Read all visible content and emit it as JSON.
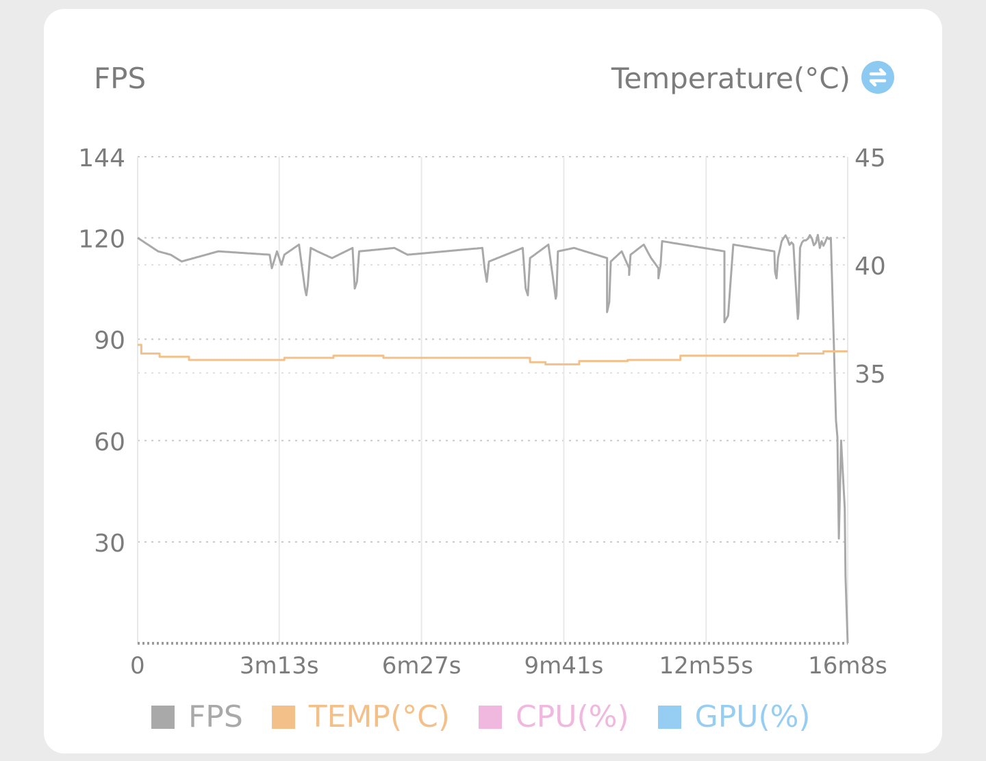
{
  "header": {
    "left_axis_title": "FPS",
    "right_axis_title": "Temperature(°C)",
    "swap_icon": "swap-arrows-icon"
  },
  "colors": {
    "fps": "#a9a9a9",
    "temp": "#f4c08a",
    "cpu": "#f0b8df",
    "gpu": "#96cdf3",
    "grid": "#c8c8c8",
    "tick_text": "#7c7c7c",
    "button": "#8ccaf2"
  },
  "chart_data": {
    "type": "line",
    "x_unit": "seconds",
    "x_ticks": [
      {
        "value": 0,
        "label": "0"
      },
      {
        "value": 193,
        "label": "3m13s"
      },
      {
        "value": 387,
        "label": "6m27s"
      },
      {
        "value": 581,
        "label": "9m41s"
      },
      {
        "value": 775,
        "label": "12m55s"
      },
      {
        "value": 968,
        "label": "16m8s"
      }
    ],
    "xlim": [
      0,
      968
    ],
    "y_left": {
      "title": "FPS",
      "ticks": [
        30,
        60,
        90,
        120,
        144
      ],
      "ylim": [
        0,
        144
      ]
    },
    "y_right": {
      "title": "Temperature(°C)",
      "ticks": [
        35,
        40,
        45
      ],
      "ylim": [
        22.5,
        45
      ]
    },
    "grid": true,
    "legend_position": "bottom",
    "legend": [
      {
        "key": "fps",
        "label": "FPS"
      },
      {
        "key": "temp",
        "label": "TEMP(°C)"
      },
      {
        "key": "cpu",
        "label": "CPU(%)"
      },
      {
        "key": "gpu",
        "label": "GPU(%)"
      }
    ],
    "series": [
      {
        "name": "FPS",
        "axis": "left",
        "color_key": "fps",
        "baseline": 119.5,
        "x": [
          0,
          28,
          45,
          60,
          110,
          180,
          183,
          190,
          196,
          200,
          220,
          228,
          230,
          232,
          234,
          236,
          245,
          265,
          293,
          296,
          299,
          302,
          350,
          368,
          470,
          473,
          476,
          479,
          525,
          529,
          532,
          535,
          560,
          570,
          571,
          573,
          595,
          640,
          640,
          643,
          645,
          660,
          670,
          670,
          672,
          690,
          700,
          710,
          710,
          713,
          715,
          800,
          800,
          805,
          808,
          812,
          868,
          869,
          871,
          873,
          878,
          894,
          900,
          901,
          903,
          930,
          945,
          949,
          952,
          954,
          956,
          959,
          961,
          964,
          965,
          968
        ],
        "y": [
          120,
          116,
          115,
          113,
          116,
          115,
          111,
          116,
          112,
          115,
          118,
          105,
          103,
          106,
          112,
          117,
          116,
          114,
          117,
          105,
          107,
          116,
          117,
          115,
          117,
          111,
          107,
          113,
          117,
          105,
          103,
          114,
          118,
          102,
          103,
          116,
          117,
          114,
          98,
          101,
          113,
          116,
          111,
          109,
          115,
          118,
          114,
          111,
          108,
          112,
          119,
          116,
          95,
          97,
          106,
          118,
          116,
          110,
          108,
          114,
          119,
          118,
          96,
          98,
          117,
          117,
          120,
          90,
          66,
          61,
          31,
          60,
          52,
          40,
          20,
          0
        ]
      },
      {
        "name": "TEMP(°C)",
        "axis": "right",
        "color_key": "temp",
        "x": [
          0,
          5,
          5,
          30,
          30,
          70,
          70,
          200,
          200,
          267,
          267,
          335,
          335,
          535,
          535,
          556,
          556,
          602,
          602,
          668,
          668,
          740,
          740,
          900,
          900,
          935,
          935,
          968
        ],
        "y": [
          36.3,
          36.3,
          35.9,
          35.9,
          35.75,
          35.75,
          35.6,
          35.6,
          35.7,
          35.7,
          35.8,
          35.8,
          35.7,
          35.7,
          35.5,
          35.5,
          35.4,
          35.4,
          35.55,
          35.55,
          35.6,
          35.6,
          35.8,
          35.8,
          35.9,
          35.9,
          36.0,
          36.0
        ]
      }
    ]
  }
}
